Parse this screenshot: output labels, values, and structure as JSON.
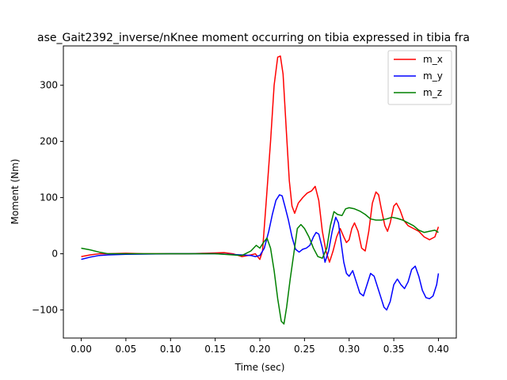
{
  "chart_data": {
    "type": "line",
    "title": "ase_Gait2392_inverse/nKnee moment occurring on tibia expressed in tibia fra",
    "xlabel": "Time (sec)",
    "ylabel": "Moment (Nm)",
    "xlim": [
      -0.02,
      0.42
    ],
    "ylim": [
      -150,
      370
    ],
    "xticks": [
      0.0,
      0.05,
      0.1,
      0.15,
      0.2,
      0.25,
      0.3,
      0.35,
      0.4
    ],
    "xtick_labels": [
      "0.00",
      "0.05",
      "0.10",
      "0.15",
      "0.20",
      "0.25",
      "0.30",
      "0.35",
      "0.40"
    ],
    "yticks": [
      -100,
      0,
      100,
      200,
      300
    ],
    "ytick_labels": [
      "−100",
      "0",
      "100",
      "200",
      "300"
    ],
    "grid": false,
    "legend_position": "top-right",
    "series": [
      {
        "name": "m_x",
        "color": "#ff0000",
        "points": [
          [
            0.0,
            -5
          ],
          [
            0.01,
            -2
          ],
          [
            0.02,
            0
          ],
          [
            0.03,
            0
          ],
          [
            0.05,
            1
          ],
          [
            0.07,
            0
          ],
          [
            0.1,
            0
          ],
          [
            0.12,
            0
          ],
          [
            0.14,
            1
          ],
          [
            0.16,
            2
          ],
          [
            0.17,
            0
          ],
          [
            0.18,
            -5
          ],
          [
            0.19,
            -2
          ],
          [
            0.195,
            0
          ],
          [
            0.2,
            -10
          ],
          [
            0.203,
            5
          ],
          [
            0.207,
            90
          ],
          [
            0.212,
            200
          ],
          [
            0.216,
            300
          ],
          [
            0.22,
            350
          ],
          [
            0.223,
            352
          ],
          [
            0.226,
            320
          ],
          [
            0.23,
            210
          ],
          [
            0.233,
            130
          ],
          [
            0.236,
            85
          ],
          [
            0.239,
            72
          ],
          [
            0.243,
            90
          ],
          [
            0.248,
            100
          ],
          [
            0.253,
            108
          ],
          [
            0.258,
            112
          ],
          [
            0.262,
            120
          ],
          [
            0.266,
            95
          ],
          [
            0.27,
            40
          ],
          [
            0.274,
            5
          ],
          [
            0.278,
            -15
          ],
          [
            0.282,
            5
          ],
          [
            0.286,
            30
          ],
          [
            0.29,
            45
          ],
          [
            0.294,
            30
          ],
          [
            0.297,
            20
          ],
          [
            0.3,
            25
          ],
          [
            0.303,
            45
          ],
          [
            0.306,
            55
          ],
          [
            0.31,
            40
          ],
          [
            0.314,
            10
          ],
          [
            0.318,
            5
          ],
          [
            0.322,
            40
          ],
          [
            0.326,
            90
          ],
          [
            0.33,
            110
          ],
          [
            0.333,
            105
          ],
          [
            0.336,
            80
          ],
          [
            0.34,
            50
          ],
          [
            0.343,
            40
          ],
          [
            0.346,
            55
          ],
          [
            0.35,
            85
          ],
          [
            0.353,
            90
          ],
          [
            0.357,
            78
          ],
          [
            0.361,
            60
          ],
          [
            0.366,
            50
          ],
          [
            0.372,
            45
          ],
          [
            0.378,
            40
          ],
          [
            0.384,
            30
          ],
          [
            0.39,
            25
          ],
          [
            0.396,
            30
          ],
          [
            0.4,
            48
          ]
        ]
      },
      {
        "name": "m_y",
        "color": "#0000ff",
        "points": [
          [
            0.0,
            -10
          ],
          [
            0.01,
            -6
          ],
          [
            0.02,
            -3
          ],
          [
            0.03,
            -2
          ],
          [
            0.05,
            -1
          ],
          [
            0.1,
            0
          ],
          [
            0.15,
            0
          ],
          [
            0.18,
            -2
          ],
          [
            0.19,
            -3
          ],
          [
            0.195,
            -5
          ],
          [
            0.2,
            -3
          ],
          [
            0.205,
            10
          ],
          [
            0.21,
            40
          ],
          [
            0.214,
            70
          ],
          [
            0.218,
            95
          ],
          [
            0.222,
            105
          ],
          [
            0.225,
            103
          ],
          [
            0.228,
            85
          ],
          [
            0.232,
            60
          ],
          [
            0.236,
            30
          ],
          [
            0.24,
            8
          ],
          [
            0.244,
            3
          ],
          [
            0.248,
            8
          ],
          [
            0.252,
            10
          ],
          [
            0.256,
            15
          ],
          [
            0.26,
            30
          ],
          [
            0.263,
            38
          ],
          [
            0.266,
            35
          ],
          [
            0.27,
            10
          ],
          [
            0.273,
            -15
          ],
          [
            0.277,
            5
          ],
          [
            0.281,
            40
          ],
          [
            0.285,
            65
          ],
          [
            0.288,
            55
          ],
          [
            0.291,
            20
          ],
          [
            0.294,
            -15
          ],
          [
            0.297,
            -35
          ],
          [
            0.3,
            -40
          ],
          [
            0.304,
            -30
          ],
          [
            0.308,
            -50
          ],
          [
            0.312,
            -70
          ],
          [
            0.316,
            -75
          ],
          [
            0.32,
            -55
          ],
          [
            0.324,
            -35
          ],
          [
            0.328,
            -40
          ],
          [
            0.332,
            -60
          ],
          [
            0.336,
            -80
          ],
          [
            0.339,
            -95
          ],
          [
            0.342,
            -100
          ],
          [
            0.346,
            -85
          ],
          [
            0.35,
            -55
          ],
          [
            0.354,
            -45
          ],
          [
            0.358,
            -55
          ],
          [
            0.362,
            -62
          ],
          [
            0.366,
            -50
          ],
          [
            0.37,
            -28
          ],
          [
            0.374,
            -22
          ],
          [
            0.378,
            -40
          ],
          [
            0.382,
            -65
          ],
          [
            0.386,
            -78
          ],
          [
            0.39,
            -80
          ],
          [
            0.394,
            -75
          ],
          [
            0.398,
            -55
          ],
          [
            0.4,
            -35
          ]
        ]
      },
      {
        "name": "m_z",
        "color": "#008000",
        "points": [
          [
            0.0,
            10
          ],
          [
            0.01,
            7
          ],
          [
            0.02,
            3
          ],
          [
            0.03,
            0
          ],
          [
            0.05,
            0
          ],
          [
            0.1,
            0
          ],
          [
            0.15,
            0
          ],
          [
            0.17,
            -2
          ],
          [
            0.18,
            -3
          ],
          [
            0.19,
            5
          ],
          [
            0.196,
            15
          ],
          [
            0.2,
            10
          ],
          [
            0.204,
            20
          ],
          [
            0.208,
            28
          ],
          [
            0.212,
            10
          ],
          [
            0.216,
            -30
          ],
          [
            0.22,
            -80
          ],
          [
            0.224,
            -120
          ],
          [
            0.227,
            -125
          ],
          [
            0.23,
            -95
          ],
          [
            0.234,
            -45
          ],
          [
            0.238,
            0
          ],
          [
            0.242,
            45
          ],
          [
            0.246,
            52
          ],
          [
            0.25,
            45
          ],
          [
            0.255,
            30
          ],
          [
            0.26,
            10
          ],
          [
            0.265,
            -5
          ],
          [
            0.27,
            -8
          ],
          [
            0.275,
            10
          ],
          [
            0.279,
            50
          ],
          [
            0.283,
            75
          ],
          [
            0.287,
            70
          ],
          [
            0.292,
            68
          ],
          [
            0.296,
            80
          ],
          [
            0.3,
            82
          ],
          [
            0.306,
            80
          ],
          [
            0.312,
            76
          ],
          [
            0.318,
            70
          ],
          [
            0.324,
            62
          ],
          [
            0.33,
            60
          ],
          [
            0.336,
            60
          ],
          [
            0.342,
            62
          ],
          [
            0.348,
            65
          ],
          [
            0.354,
            63
          ],
          [
            0.36,
            60
          ],
          [
            0.366,
            55
          ],
          [
            0.372,
            50
          ],
          [
            0.378,
            42
          ],
          [
            0.384,
            38
          ],
          [
            0.39,
            40
          ],
          [
            0.396,
            42
          ],
          [
            0.4,
            38
          ]
        ]
      }
    ]
  }
}
